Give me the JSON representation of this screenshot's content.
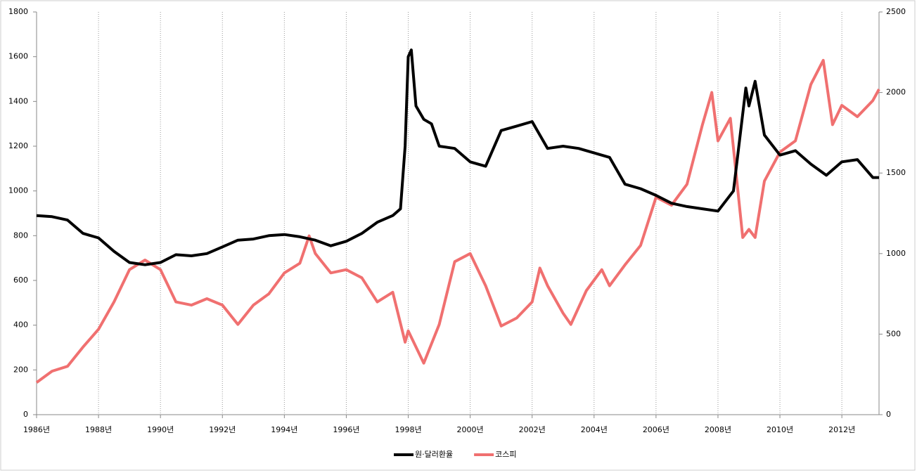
{
  "chart_data": {
    "type": "line",
    "xlim": [
      1986,
      2013.2
    ],
    "xticks": [
      {
        "value": 1986,
        "label": "1986년"
      },
      {
        "value": 1988,
        "label": "1988년"
      },
      {
        "value": 1990,
        "label": "1990년"
      },
      {
        "value": 1992,
        "label": "1992년"
      },
      {
        "value": 1994,
        "label": "1994년"
      },
      {
        "value": 1996,
        "label": "1996년"
      },
      {
        "value": 1998,
        "label": "1998년"
      },
      {
        "value": 2000,
        "label": "2000년"
      },
      {
        "value": 2002,
        "label": "2002년"
      },
      {
        "value": 2004,
        "label": "2004년"
      },
      {
        "value": 2006,
        "label": "2006년"
      },
      {
        "value": 2008,
        "label": "2008년"
      },
      {
        "value": 2010,
        "label": "2010년"
      },
      {
        "value": 2012,
        "label": "2012년"
      }
    ],
    "ylim": [
      0,
      1800
    ],
    "yticks": [
      0,
      200,
      400,
      600,
      800,
      1000,
      1200,
      1400,
      1600,
      1800
    ],
    "y2lim": [
      0,
      2500
    ],
    "y2ticks": [
      0,
      500,
      1000,
      1500,
      2000,
      2500
    ],
    "grid": true,
    "legend": "bottom",
    "series": [
      {
        "name": "원·달러환율",
        "color": "#000000",
        "x": [
          1986.0,
          1986.5,
          1987.0,
          1987.5,
          1988.0,
          1988.5,
          1989.0,
          1989.5,
          1990.0,
          1990.5,
          1991.0,
          1991.5,
          1992.0,
          1992.5,
          1993.0,
          1993.5,
          1994.0,
          1994.5,
          1995.0,
          1995.5,
          1996.0,
          1996.5,
          1997.0,
          1997.5,
          1997.75,
          1997.9,
          1998.0,
          1998.1,
          1998.25,
          1998.5,
          1998.75,
          1999.0,
          1999.5,
          2000.0,
          2000.5,
          2001.0,
          2001.5,
          2002.0,
          2002.5,
          2003.0,
          2003.5,
          2004.0,
          2004.5,
          2005.0,
          2005.5,
          2006.0,
          2006.5,
          2007.0,
          2007.5,
          2008.0,
          2008.5,
          2008.9,
          2009.0,
          2009.2,
          2009.5,
          2010.0,
          2010.5,
          2011.0,
          2011.5,
          2012.0,
          2012.5,
          2013.0,
          2013.2
        ],
        "values": [
          890,
          885,
          870,
          810,
          790,
          730,
          680,
          670,
          680,
          715,
          710,
          720,
          750,
          780,
          785,
          800,
          805,
          795,
          780,
          755,
          775,
          810,
          860,
          890,
          920,
          1200,
          1600,
          1630,
          1380,
          1320,
          1300,
          1200,
          1190,
          1130,
          1110,
          1270,
          1290,
          1310,
          1190,
          1200,
          1190,
          1170,
          1150,
          1030,
          1010,
          980,
          945,
          930,
          920,
          910,
          1000,
          1460,
          1380,
          1490,
          1250,
          1160,
          1180,
          1120,
          1070,
          1130,
          1140,
          1060,
          1060
        ]
      },
      {
        "name": "코스피",
        "color": "#f07070",
        "axis": "y2",
        "x": [
          1986.0,
          1986.5,
          1987.0,
          1987.5,
          1988.0,
          1988.5,
          1989.0,
          1989.5,
          1990.0,
          1990.3,
          1990.5,
          1991.0,
          1991.5,
          1992.0,
          1992.5,
          1993.0,
          1993.5,
          1994.0,
          1994.5,
          1994.8,
          1995.0,
          1995.5,
          1996.0,
          1996.5,
          1997.0,
          1997.5,
          1997.9,
          1998.0,
          1998.5,
          1999.0,
          1999.5,
          2000.0,
          2000.5,
          2001.0,
          2001.5,
          2002.0,
          2002.25,
          2002.5,
          2003.0,
          2003.25,
          2003.75,
          2004.25,
          2004.5,
          2005.0,
          2005.5,
          2006.0,
          2006.5,
          2007.0,
          2007.5,
          2007.8,
          2008.0,
          2008.4,
          2008.8,
          2009.0,
          2009.2,
          2009.5,
          2010.0,
          2010.5,
          2011.0,
          2011.4,
          2011.7,
          2012.0,
          2012.5,
          2013.0,
          2013.2
        ],
        "values": [
          200,
          270,
          300,
          420,
          530,
          700,
          900,
          960,
          900,
          780,
          700,
          680,
          720,
          680,
          560,
          680,
          750,
          880,
          940,
          1110,
          1000,
          880,
          900,
          850,
          700,
          760,
          450,
          520,
          320,
          560,
          950,
          1000,
          800,
          550,
          600,
          700,
          910,
          800,
          630,
          560,
          770,
          900,
          800,
          930,
          1050,
          1350,
          1300,
          1430,
          1800,
          2000,
          1700,
          1840,
          1100,
          1150,
          1100,
          1450,
          1630,
          1700,
          2050,
          2200,
          1800,
          1920,
          1850,
          1950,
          2020
        ]
      }
    ]
  }
}
